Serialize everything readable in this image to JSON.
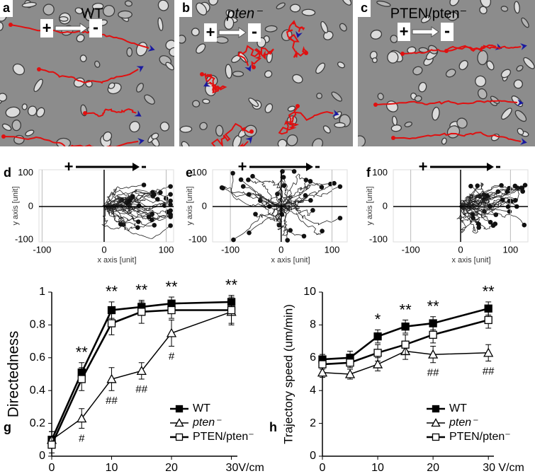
{
  "panels": [
    {
      "letter": "a",
      "title": "WT"
    },
    {
      "letter": "b",
      "title": "pten⁻"
    },
    {
      "letter": "c",
      "title": "PTEN/pten⁻"
    }
  ],
  "field_signs": {
    "plus": "+",
    "minus": "-"
  },
  "chart_data": [
    {
      "type": "trajectory",
      "letter": "d",
      "x_label": "x axis [unit]",
      "y_label": "y axis [unit]",
      "xlim": [
        -105,
        112
      ],
      "ylim": [
        -106,
        110
      ],
      "xticks": [
        -100,
        0,
        100
      ],
      "yticks": [
        -100,
        0,
        100
      ]
    },
    {
      "type": "trajectory",
      "letter": "e",
      "x_label": "x axis [unit]",
      "y_label": "y axis [unit]",
      "xlim": [
        -135,
        130
      ],
      "ylim": [
        -106,
        110
      ],
      "xticks": [
        -100,
        0,
        100
      ],
      "yticks": [
        -100,
        0,
        100
      ]
    },
    {
      "type": "trajectory",
      "letter": "f",
      "x_label": "x axis [unit]",
      "y_label": "y axis [unit]",
      "xlim": [
        -135,
        135
      ],
      "ylim": [
        -106,
        110
      ],
      "xticks": [
        -100,
        0,
        100
      ],
      "yticks": [
        -100,
        0,
        100
      ]
    },
    {
      "type": "line",
      "letter": "g",
      "y_label": "Directedness",
      "x": [
        0,
        5,
        10,
        15,
        20,
        30
      ],
      "xlim": [
        0,
        31
      ],
      "xticks": [
        0,
        10,
        20,
        {
          "value": 30,
          "label": "30V/cm"
        }
      ],
      "ylim": [
        0,
        1
      ],
      "yticks": [
        0,
        0.2,
        0.4,
        0.6,
        0.8,
        1
      ],
      "legend": "lower right",
      "series": [
        {
          "name": "WT",
          "color": "#000000",
          "marker": "filled-square",
          "values": [
            0.1,
            0.51,
            0.89,
            0.91,
            0.93,
            0.94
          ],
          "errors": [
            0.05,
            0.06,
            0.05,
            0.03,
            0.04,
            0.04
          ]
        },
        {
          "name": "pten⁻",
          "color": "#000000",
          "marker": "open-triangle",
          "values": [
            0.1,
            0.23,
            0.47,
            0.52,
            0.75,
            0.88
          ],
          "errors": [
            0.05,
            0.06,
            0.07,
            0.05,
            0.08,
            0.08
          ]
        },
        {
          "name": "PTEN/pten⁻",
          "color": "#000000",
          "marker": "open-square",
          "values": [
            0.07,
            0.47,
            0.81,
            0.88,
            0.89,
            0.89
          ],
          "errors": [
            0.05,
            0.07,
            0.07,
            0.07,
            0.05,
            0.08
          ]
        }
      ],
      "annotations": [
        {
          "x": 5,
          "text": "**",
          "position": "above"
        },
        {
          "x": 10,
          "text": "**",
          "position": "above"
        },
        {
          "x": 15,
          "text": "**",
          "position": "above"
        },
        {
          "x": 20,
          "text": "**",
          "position": "above"
        },
        {
          "x": 30,
          "text": "**",
          "position": "above"
        },
        {
          "x": 5,
          "text": "#",
          "position": "below"
        },
        {
          "x": 10,
          "text": "##",
          "position": "below"
        },
        {
          "x": 15,
          "text": "##",
          "position": "below"
        },
        {
          "x": 20,
          "text": "#",
          "position": "below"
        }
      ]
    },
    {
      "type": "line",
      "letter": "h",
      "y_label": "Trajectory speed (um/min)",
      "x": [
        0,
        5,
        10,
        15,
        20,
        30
      ],
      "xlim": [
        0,
        31
      ],
      "xticks": [
        0,
        10,
        20,
        {
          "value": 30,
          "label": "30 V/cm"
        }
      ],
      "ylim": [
        0,
        10
      ],
      "yticks": [
        0,
        2,
        4,
        6,
        8,
        10
      ],
      "legend": "lower right",
      "series": [
        {
          "name": "WT",
          "color": "#000000",
          "marker": "filled-square",
          "values": [
            5.9,
            6.0,
            7.3,
            7.9,
            8.1,
            9.0
          ],
          "errors": [
            0.3,
            0.4,
            0.4,
            0.4,
            0.4,
            0.4
          ]
        },
        {
          "name": "pten⁻",
          "color": "#000000",
          "marker": "open-triangle",
          "values": [
            5.1,
            5.0,
            5.6,
            6.4,
            6.2,
            6.3
          ],
          "errors": [
            0.3,
            0.3,
            0.4,
            0.5,
            0.5,
            0.5
          ]
        },
        {
          "name": "PTEN/pten⁻",
          "color": "#000000",
          "marker": "open-square",
          "values": [
            5.6,
            5.7,
            6.3,
            6.8,
            7.4,
            8.3
          ],
          "errors": [
            0.3,
            0.3,
            0.5,
            0.6,
            0.5,
            0.5
          ]
        }
      ],
      "annotations": [
        {
          "x": 10,
          "text": "*",
          "position": "above"
        },
        {
          "x": 15,
          "text": "**",
          "position": "above"
        },
        {
          "x": 20,
          "text": "**",
          "position": "above"
        },
        {
          "x": 30,
          "text": "**",
          "position": "above"
        },
        {
          "x": 20,
          "text": "##",
          "position": "below"
        },
        {
          "x": 30,
          "text": "##",
          "position": "below"
        }
      ]
    }
  ]
}
